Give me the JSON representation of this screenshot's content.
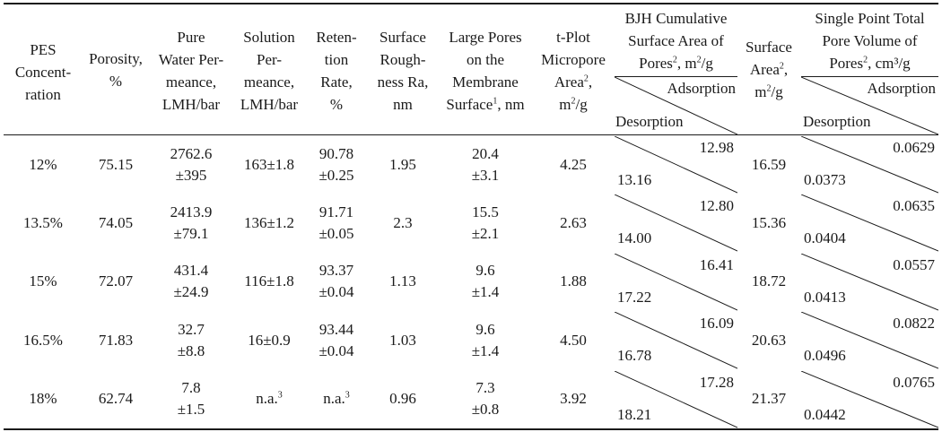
{
  "header": {
    "pes": [
      "PES",
      "Concent-",
      "ration"
    ],
    "porosity": [
      "Porosity,",
      "%"
    ],
    "pwp": [
      "Pure",
      "Water Per-",
      "meance,",
      "LMH/bar"
    ],
    "sol": [
      "Solution",
      "Per-",
      "meance,",
      "LMH/bar"
    ],
    "ret": [
      "Reten-",
      "tion",
      "Rate,",
      "%"
    ],
    "rough": [
      "Surface",
      "Rough-",
      "ness Ra,",
      "nm"
    ],
    "large": [
      "Large Pores",
      "on the",
      "Membrane",
      "Surface",
      "1",
      ", nm"
    ],
    "tplot": [
      "t-Plot",
      "Micropore",
      "Area",
      "2",
      ",",
      "m",
      "2",
      "/g"
    ],
    "bjh": [
      "BJH Cumulative",
      "Surface Area of",
      "Pores",
      "2",
      ", m",
      "2",
      "/g"
    ],
    "sa": [
      "Surface",
      "Area",
      "2",
      ",",
      "m",
      "2",
      "/g"
    ],
    "sp": [
      "Single Point Total",
      "Pore Volume of",
      "Pores",
      "2",
      ", cm³/g"
    ],
    "adsorption": "Adsorption",
    "desorption": "Desorption"
  },
  "rows": [
    {
      "conc": "12%",
      "por": "75.15",
      "pwp1": "2762.6",
      "pwp2": "±395",
      "sol": "163±1.8",
      "ret1": "90.78",
      "ret2": "±0.25",
      "rough": "1.95",
      "lp1": "20.4",
      "lp2": "±3.1",
      "tplot": "4.25",
      "bjh_ads": "12.98",
      "bjh_des": "13.16",
      "sa": "16.59",
      "sp_ads": "0.0629",
      "sp_des": "0.0373"
    },
    {
      "conc": "13.5%",
      "por": "74.05",
      "pwp1": "2413.9",
      "pwp2": "±79.1",
      "sol": "136±1.2",
      "ret1": "91.71",
      "ret2": "±0.05",
      "rough": "2.3",
      "lp1": "15.5",
      "lp2": "±2.1",
      "tplot": "2.63",
      "bjh_ads": "12.80",
      "bjh_des": "14.00",
      "sa": "15.36",
      "sp_ads": "0.0635",
      "sp_des": "0.0404"
    },
    {
      "conc": "15%",
      "por": "72.07",
      "pwp1": "431.4",
      "pwp2": "±24.9",
      "sol": "116±1.8",
      "ret1": "93.37",
      "ret2": "±0.04",
      "rough": "1.13",
      "lp1": "9.6",
      "lp2": "±1.4",
      "tplot": "1.88",
      "bjh_ads": "16.41",
      "bjh_des": "17.22",
      "sa": "18.72",
      "sp_ads": "0.0557",
      "sp_des": "0.0413"
    },
    {
      "conc": "16.5%",
      "por": "71.83",
      "pwp1": "32.7",
      "pwp2": "±8.8",
      "sol": "16±0.9",
      "ret1": "93.44",
      "ret2": "±0.04",
      "rough": "1.03",
      "lp1": "9.6",
      "lp2": "±1.4",
      "tplot": "4.50",
      "bjh_ads": "16.09",
      "bjh_des": "16.78",
      "sa": "20.63",
      "sp_ads": "0.0822",
      "sp_des": "0.0496"
    },
    {
      "conc": "18%",
      "por": "62.74",
      "pwp1": "7.8",
      "pwp2": "±1.5",
      "sol": "n.a.",
      "sol_sup": "3",
      "ret1": "n.a.",
      "ret_sup": "3",
      "rough": "0.96",
      "lp1": "7.3",
      "lp2": "±0.8",
      "tplot": "3.92",
      "bjh_ads": "17.28",
      "bjh_des": "18.21",
      "sa": "21.37",
      "sp_ads": "0.0765",
      "sp_des": "0.0442"
    }
  ]
}
